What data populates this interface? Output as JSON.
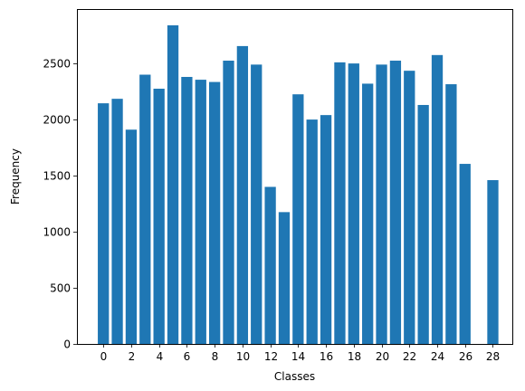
{
  "chart_data": {
    "type": "bar",
    "x": [
      0,
      1,
      2,
      3,
      4,
      5,
      6,
      7,
      8,
      9,
      10,
      11,
      12,
      13,
      14,
      15,
      16,
      17,
      18,
      19,
      20,
      21,
      22,
      23,
      24,
      25,
      26,
      28
    ],
    "values": [
      2145,
      2185,
      1910,
      2400,
      2275,
      2840,
      2380,
      2355,
      2335,
      2525,
      2655,
      2490,
      1400,
      1175,
      2225,
      2000,
      2040,
      2510,
      2500,
      2320,
      2490,
      2525,
      2435,
      2130,
      2575,
      2315,
      1605,
      1460
    ],
    "xlabel": "Classes",
    "ylabel": "Frequency",
    "xticks": [
      "0",
      "2",
      "4",
      "6",
      "8",
      "10",
      "12",
      "14",
      "16",
      "18",
      "20",
      "22",
      "24",
      "26",
      "28"
    ],
    "xtick_values": [
      0,
      2,
      4,
      6,
      8,
      10,
      12,
      14,
      16,
      18,
      20,
      22,
      24,
      26,
      28
    ],
    "yticks": [
      "0",
      "500",
      "1000",
      "1500",
      "2000",
      "2500"
    ],
    "ytick_values": [
      0,
      500,
      1000,
      1500,
      2000,
      2500
    ],
    "xlim": [
      -1.9,
      29.4
    ],
    "ylim": [
      0,
      2985
    ],
    "grid": false,
    "bar_color": "#1f77b4"
  }
}
